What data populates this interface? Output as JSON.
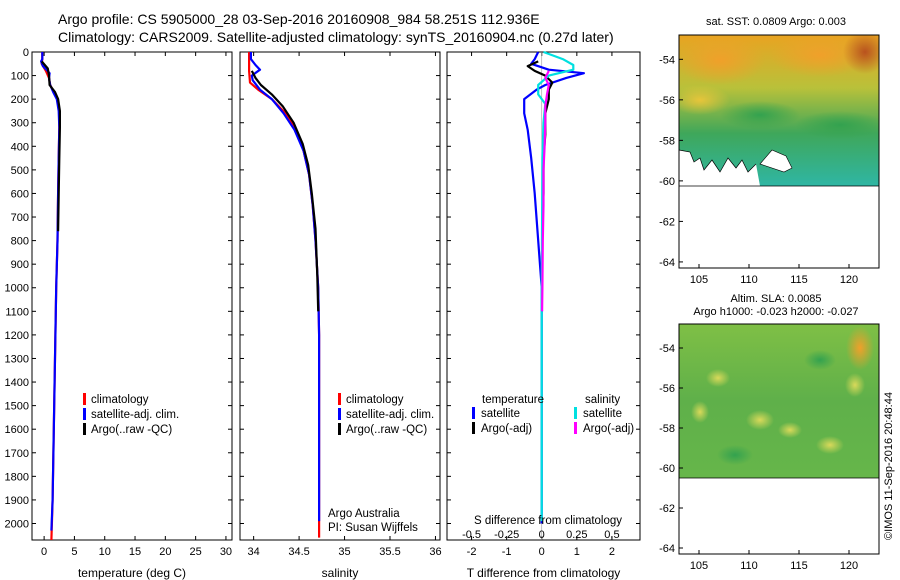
{
  "header": {
    "title_line1": "Argo profile: CS 5905000_28 03-Sep-2016 20160908_984 58.251S 112.936E",
    "title_line2": "Climatology: CARS2009. Satellite-adjusted climatology: synTS_20160904.nc (0.27d later)"
  },
  "colors": {
    "climatology": "#ff0000",
    "satellite": "#0000ff",
    "argo": "#000000",
    "satellite_s": "#00e0e0",
    "argo_adj_s": "#ff00ff"
  },
  "watermark": "©IMOS 11-Sep-2016 20:48:44",
  "chart_data": [
    {
      "type": "line",
      "panel": "temperature",
      "xlabel": "temperature (deg C)",
      "ylabel": "",
      "xlim": [
        -2,
        31
      ],
      "ylim": [
        2070,
        0
      ],
      "xticks": [
        0,
        5,
        10,
        15,
        20,
        25,
        30
      ],
      "yticks": [
        0,
        100,
        200,
        300,
        400,
        500,
        600,
        700,
        800,
        900,
        1000,
        1100,
        1200,
        1300,
        1400,
        1500,
        1600,
        1700,
        1800,
        1900,
        2000
      ],
      "legend": [
        "climatology",
        "satellite-adj. clim.",
        "Argo(..raw -QC)"
      ],
      "series": [
        {
          "name": "climatology",
          "color": "#ff0000",
          "points": [
            [
              -0.3,
              0
            ],
            [
              -0.3,
              30
            ],
            [
              -0.4,
              50
            ],
            [
              0.3,
              80
            ],
            [
              0.8,
              110
            ],
            [
              1.0,
              140
            ],
            [
              1.6,
              170
            ],
            [
              2.2,
              200
            ],
            [
              2.5,
              250
            ],
            [
              2.5,
              320
            ],
            [
              2.4,
              450
            ],
            [
              2.3,
              600
            ],
            [
              2.2,
              800
            ],
            [
              2.0,
              1000
            ],
            [
              1.8,
              1300
            ],
            [
              1.6,
              1600
            ],
            [
              1.4,
              1900
            ],
            [
              1.2,
              2070
            ]
          ]
        },
        {
          "name": "satellite-adj. clim.",
          "color": "#0000ff",
          "points": [
            [
              -0.3,
              0
            ],
            [
              -0.3,
              30
            ],
            [
              -0.5,
              40
            ],
            [
              -0.2,
              60
            ],
            [
              0.4,
              75
            ],
            [
              0.9,
              90
            ],
            [
              0.8,
              110
            ],
            [
              1.0,
              140
            ],
            [
              1.5,
              170
            ],
            [
              2.1,
              200
            ],
            [
              2.4,
              250
            ],
            [
              2.5,
              320
            ],
            [
              2.4,
              450
            ],
            [
              2.3,
              600
            ],
            [
              2.2,
              800
            ],
            [
              2.0,
              1000
            ],
            [
              1.8,
              1300
            ],
            [
              1.6,
              1600
            ],
            [
              1.4,
              1900
            ],
            [
              1.2,
              2030
            ]
          ]
        },
        {
          "name": "Argo(..raw -QC)",
          "color": "#000000",
          "points": [
            [
              -0.4,
              40
            ],
            [
              0.6,
              70
            ],
            [
              0.8,
              100
            ],
            [
              0.9,
              140
            ],
            [
              1.8,
              170
            ],
            [
              2.3,
              200
            ],
            [
              2.6,
              250
            ],
            [
              2.6,
              320
            ],
            [
              2.5,
              450
            ],
            [
              2.4,
              600
            ],
            [
              2.3,
              760
            ]
          ]
        }
      ]
    },
    {
      "type": "line",
      "panel": "salinity",
      "xlabel": "salinity",
      "ylabel": "",
      "xlim": [
        33.85,
        36.05
      ],
      "ylim": [
        2070,
        0
      ],
      "xticks": [
        34,
        34.5,
        35,
        35.5,
        36
      ],
      "xticklabels": [
        "34",
        "34.5",
        "35",
        "35.5",
        "36"
      ],
      "legend": [
        "climatology",
        "satellite-adj. clim.",
        "Argo(..raw -QC)"
      ],
      "annotation": [
        "Argo Australia",
        "PI: Susan Wijffels"
      ],
      "series": [
        {
          "name": "climatology",
          "color": "#ff0000",
          "points": [
            [
              33.95,
              0
            ],
            [
              33.95,
              80
            ],
            [
              33.96,
              130
            ],
            [
              34.05,
              160
            ],
            [
              34.2,
              200
            ],
            [
              34.35,
              260
            ],
            [
              34.47,
              330
            ],
            [
              34.55,
              420
            ],
            [
              34.61,
              520
            ],
            [
              34.65,
              650
            ],
            [
              34.68,
              800
            ],
            [
              34.71,
              1000
            ],
            [
              34.72,
              1200
            ],
            [
              34.72,
              1400
            ],
            [
              34.72,
              1600
            ],
            [
              34.72,
              1800
            ],
            [
              34.72,
              2060
            ]
          ]
        },
        {
          "name": "satellite-adj. clim.",
          "color": "#0000ff",
          "points": [
            [
              33.97,
              0
            ],
            [
              33.97,
              30
            ],
            [
              34.02,
              55
            ],
            [
              34.07,
              75
            ],
            [
              33.98,
              100
            ],
            [
              33.99,
              120
            ],
            [
              34.07,
              160
            ],
            [
              34.2,
              200
            ],
            [
              34.33,
              260
            ],
            [
              34.45,
              330
            ],
            [
              34.55,
              420
            ],
            [
              34.61,
              520
            ],
            [
              34.65,
              650
            ],
            [
              34.68,
              800
            ],
            [
              34.71,
              1000
            ],
            [
              34.72,
              1200
            ],
            [
              34.72,
              1400
            ],
            [
              34.72,
              1600
            ],
            [
              34.72,
              1800
            ],
            [
              34.72,
              1990
            ]
          ]
        },
        {
          "name": "Argo(..raw -QC)",
          "color": "#000000",
          "points": [
            [
              33.98,
              80
            ],
            [
              34.02,
              110
            ],
            [
              34.08,
              140
            ],
            [
              34.2,
              180
            ],
            [
              34.32,
              230
            ],
            [
              34.44,
              300
            ],
            [
              34.54,
              390
            ],
            [
              34.6,
              480
            ],
            [
              34.64,
              600
            ],
            [
              34.68,
              750
            ],
            [
              34.7,
              950
            ],
            [
              34.71,
              1100
            ]
          ]
        }
      ]
    },
    {
      "type": "line",
      "panel": "differences",
      "xlabel": "T difference from climatology",
      "xlabel2": "S difference from climatology",
      "xlim": [
        -2.7,
        2.8
      ],
      "ylim": [
        2070,
        0
      ],
      "xticks": [
        -2,
        -1,
        0,
        1,
        2
      ],
      "xticklabels": [
        "-2",
        "-1",
        "0",
        "1",
        "2"
      ],
      "xticks2": [
        -0.5,
        -0.25,
        0,
        0.25,
        0.5
      ],
      "xticklabels2": [
        "-0.5",
        "-0.25",
        "0",
        "0.25",
        "0.5"
      ],
      "legend_title_t": "temperature",
      "legend_title_s": "salinity",
      "legend_t": [
        "satellite",
        "Argo(-adj)"
      ],
      "legend_s": [
        "satellite",
        "Argo(-adj)"
      ],
      "series": [
        {
          "name": "temperature satellite",
          "color": "#0000ff",
          "points": [
            [
              -0.1,
              0
            ],
            [
              -0.2,
              30
            ],
            [
              -0.3,
              50
            ],
            [
              0.2,
              75
            ],
            [
              1.2,
              90
            ],
            [
              0.7,
              110
            ],
            [
              0.1,
              140
            ],
            [
              -0.15,
              160
            ],
            [
              -0.5,
              200
            ],
            [
              -0.5,
              260
            ],
            [
              -0.4,
              330
            ],
            [
              -0.3,
              450
            ],
            [
              -0.2,
              600
            ],
            [
              -0.1,
              800
            ],
            [
              0,
              1000
            ],
            [
              0,
              1500
            ],
            [
              0,
              2000
            ]
          ]
        },
        {
          "name": "temperature Argo(-adj)",
          "color": "#000000",
          "points": [
            [
              -0.1,
              40
            ],
            [
              -0.4,
              60
            ],
            [
              -0.2,
              80
            ],
            [
              0.1,
              100
            ],
            [
              0.3,
              130
            ],
            [
              0.2,
              160
            ],
            [
              0.2,
              200
            ],
            [
              0.1,
              260
            ],
            [
              0.1,
              350
            ],
            [
              0.05,
              450
            ],
            [
              0.05,
              600
            ],
            [
              0.02,
              760
            ]
          ]
        },
        {
          "name": "salinity satellite",
          "color": "#00e0e0",
          "points": [
            [
              0.05,
              0
            ],
            [
              0.6,
              30
            ],
            [
              0.9,
              55
            ],
            [
              0.9,
              75
            ],
            [
              0.2,
              100
            ],
            [
              -0.1,
              140
            ],
            [
              -0.1,
              180
            ],
            [
              0.1,
              220
            ],
            [
              0.05,
              300
            ],
            [
              0.02,
              450
            ],
            [
              0.01,
              700
            ],
            [
              0,
              1000
            ],
            [
              0,
              1500
            ],
            [
              0,
              1990
            ]
          ]
        },
        {
          "name": "salinity Argo(-adj)",
          "color": "#ff00ff",
          "points": [
            [
              0.2,
              80
            ],
            [
              0.1,
              110
            ],
            [
              0.2,
              140
            ],
            [
              0.15,
              180
            ],
            [
              0.1,
              230
            ],
            [
              0.1,
              300
            ],
            [
              0.08,
              400
            ],
            [
              0.05,
              500
            ],
            [
              0.05,
              650
            ],
            [
              0.03,
              800
            ],
            [
              0.02,
              1000
            ],
            [
              0.01,
              1100
            ]
          ]
        }
      ]
    },
    {
      "type": "heatmap",
      "panel": "sst_map",
      "title": "sat. SST: 0.0809  Argo: 0.003",
      "xlim": [
        103,
        123
      ],
      "ylim": [
        -64.3,
        -52.8
      ],
      "xticks": [
        105,
        110,
        115,
        120
      ],
      "yticks": [
        -54,
        -56,
        -58,
        -60,
        -62,
        -64
      ],
      "data_extent_lat": [
        -60,
        -52.8
      ]
    },
    {
      "type": "heatmap",
      "panel": "sla_map",
      "title": "Altim. SLA: 0.0085",
      "subtitle": "Argo h1000: -0.023  h2000: -0.027",
      "xlim": [
        103,
        123
      ],
      "ylim": [
        -64.3,
        -52.8
      ],
      "xticks": [
        105,
        110,
        115,
        120
      ],
      "yticks": [
        -54,
        -56,
        -58,
        -60,
        -62,
        -64
      ],
      "data_extent_lat": [
        -60,
        -52.8
      ]
    }
  ]
}
